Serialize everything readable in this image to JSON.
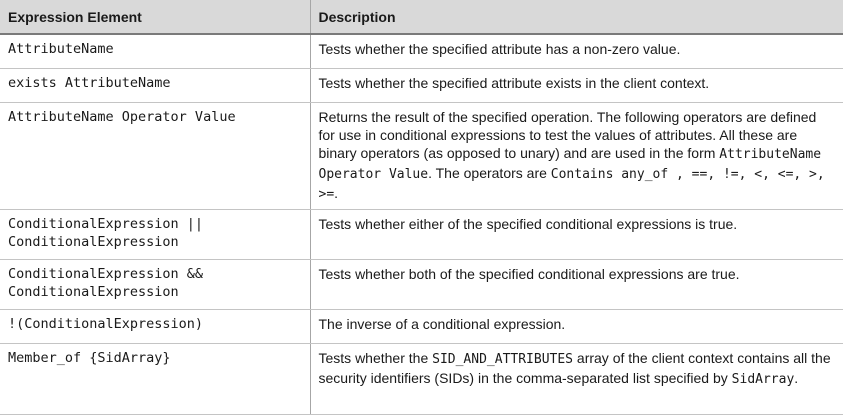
{
  "table": {
    "headers": {
      "expression": "Expression Element",
      "description": "Description"
    },
    "rows": [
      {
        "expression": "AttributeName",
        "description": [
          "Tests whether the specified attribute has a non-zero value."
        ]
      },
      {
        "expression": "exists AttributeName",
        "description": [
          "Tests whether the specified attribute exists in the client context."
        ]
      },
      {
        "expression": "AttributeName Operator Value",
        "description": [
          "Returns the result of the specified operation. The following operators are defined for use in conditional expressions to test the values of attributes. All these are binary operators (as opposed to unary) and are used in the form ",
          "AttributeName Operator Value",
          ". The operators are ",
          "Contains any_of , ==, !=, <, <=, >, >=",
          "."
        ]
      },
      {
        "expression": "ConditionalExpression ||\nConditionalExpression",
        "description": [
          "Tests whether either of the specified conditional expressions is true."
        ]
      },
      {
        "expression": "ConditionalExpression &&\nConditionalExpression",
        "description": [
          "Tests whether both of the specified conditional expressions are true."
        ]
      },
      {
        "expression": "!(ConditionalExpression)",
        "description": [
          "The inverse of a conditional expression."
        ]
      },
      {
        "expression": "Member_of {SidArray}",
        "description": [
          "Tests whether the ",
          "SID_AND_ATTRIBUTES",
          " array of the client context contains all the security identifiers (SIDs) in the comma-separated list specified by ",
          "SidArray",
          "."
        ]
      }
    ]
  }
}
